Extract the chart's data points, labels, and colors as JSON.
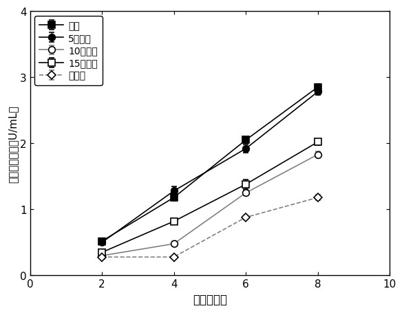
{
  "x": [
    2,
    4,
    6,
    8
  ],
  "series": [
    {
      "label": "粗磨",
      "y": [
        0.52,
        1.18,
        2.05,
        2.85
      ],
      "yerr": [
        0.03,
        0.05,
        0.05,
        0.05
      ],
      "marker": "s",
      "fillstyle": "full",
      "color": "black",
      "linestyle": "-"
    },
    {
      "label": "5次球磨",
      "y": [
        0.5,
        1.28,
        1.92,
        2.78
      ],
      "yerr": [
        0.03,
        0.07,
        0.06,
        0.05
      ],
      "marker": "o",
      "fillstyle": "full",
      "color": "black",
      "linestyle": "-"
    },
    {
      "label": "10次球磨",
      "y": [
        0.3,
        0.48,
        1.25,
        1.83
      ],
      "yerr": [
        0.02,
        0.03,
        0.04,
        0.05
      ],
      "marker": "o",
      "fillstyle": "none",
      "color": "gray",
      "linestyle": "-"
    },
    {
      "label": "15次球磨",
      "y": [
        0.35,
        0.82,
        1.38,
        2.02
      ],
      "yerr": [
        0.02,
        0.04,
        0.07,
        0.05
      ],
      "marker": "s",
      "fillstyle": "none",
      "color": "black",
      "linestyle": "-"
    },
    {
      "label": "纤维素",
      "y": [
        0.28,
        0.28,
        0.88,
        1.18
      ],
      "yerr": [
        0.02,
        0.02,
        0.03,
        0.04
      ],
      "marker": "D",
      "fillstyle": "none",
      "color": "gray",
      "linestyle": "--"
    }
  ],
  "xlabel": "时间（天）",
  "ylabel": "葡萄糖苷酶活（U/mL）",
  "xlim": [
    0,
    10
  ],
  "ylim": [
    0,
    4
  ],
  "xticks": [
    0,
    2,
    4,
    6,
    8,
    10
  ],
  "yticks": [
    0,
    1,
    2,
    3,
    4
  ],
  "background_color": "white",
  "legend_loc": "upper left"
}
